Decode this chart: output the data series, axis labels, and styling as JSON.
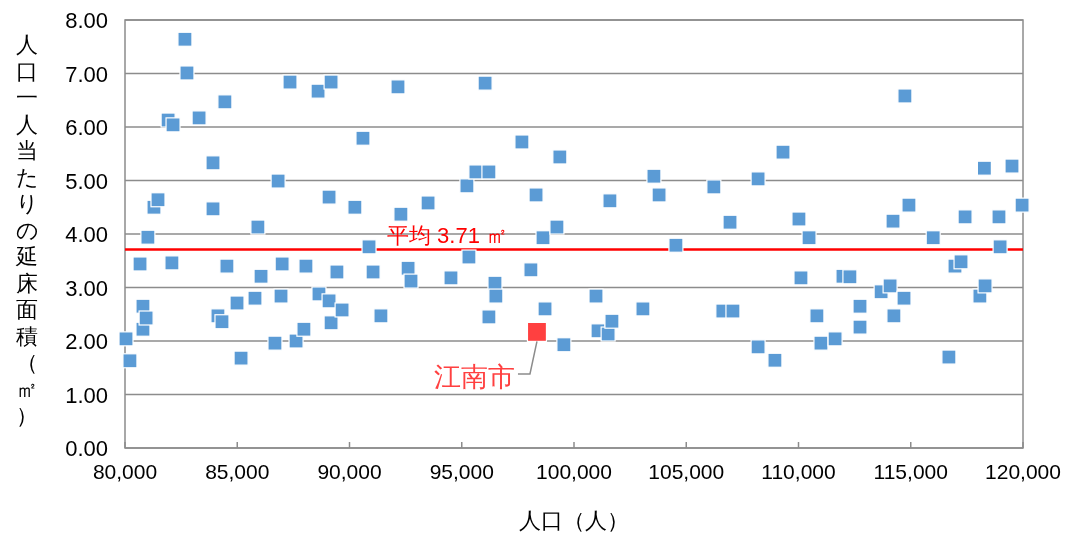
{
  "chart_data": {
    "type": "scatter",
    "xlabel": "人口（人）",
    "ylabel": "人口一人当たりの延床面積（㎡）",
    "xlim": [
      80000,
      120000
    ],
    "xticks": [
      {
        "value": 80000,
        "label": "80,000"
      },
      {
        "value": 85000,
        "label": "85,000"
      },
      {
        "value": 90000,
        "label": "90,000"
      },
      {
        "value": 95000,
        "label": "95,000"
      },
      {
        "value": 100000,
        "label": "100,000"
      },
      {
        "value": 105000,
        "label": "105,000"
      },
      {
        "value": 110000,
        "label": "110,000"
      },
      {
        "value": 115000,
        "label": "115,000"
      },
      {
        "value": 120000,
        "label": "120,000"
      }
    ],
    "ylim": [
      0,
      8
    ],
    "yticks": [
      {
        "value": 0,
        "label": "0.00"
      },
      {
        "value": 1,
        "label": "1.00"
      },
      {
        "value": 2,
        "label": "2.00"
      },
      {
        "value": 3,
        "label": "3.00"
      },
      {
        "value": 4,
        "label": "4.00"
      },
      {
        "value": 5,
        "label": "5.00"
      },
      {
        "value": 6,
        "label": "6.00"
      },
      {
        "value": 7,
        "label": "7.00"
      },
      {
        "value": 8,
        "label": "8.00"
      }
    ],
    "grid": "y",
    "marker": "square",
    "ref_lines": [
      {
        "axis": "y",
        "value": 3.71,
        "label": "平均 3.71 ㎡",
        "color": "#ff0000",
        "line_style": "solid"
      }
    ],
    "series": [
      {
        "color": "#5b9bd5",
        "x": [
          80045,
          80220,
          80670,
          80800,
          80800,
          80940,
          81020,
          81290,
          81470,
          81920,
          82140,
          82090,
          82670,
          82760,
          83300,
          83920,
          83920,
          84140,
          84320,
          84450,
          84540,
          84990,
          85170,
          85790,
          85920,
          86060,
          86680,
          86820,
          86950,
          87000,
          87350,
          87620,
          87970,
          88060,
          88600,
          88640,
          89090,
          89180,
          89090,
          89180,
          89440,
          89670,
          90240,
          90600,
          90870,
          91050,
          91400,
          92160,
          92290,
          92610,
          92740,
          93500,
          94520,
          95230,
          95320,
          95630,
          96040,
          96210,
          96210,
          96480,
          96520,
          97680,
          98080,
          98310,
          98620,
          98710,
          99240,
          99370,
          99550,
          100980,
          101070,
          101520,
          101600,
          101690,
          103070,
          103560,
          103790,
          104540,
          106230,
          106630,
          107080,
          106950,
          108200,
          108200,
          108950,
          109310,
          110020,
          110110,
          110470,
          110820,
          111000,
          111630,
          111980,
          112290,
          112740,
          112740,
          113680,
          114080,
          114210,
          114250,
          114740,
          114700,
          114920,
          116000,
          116700,
          116970,
          117240,
          117420,
          118080,
          118280,
          118310,
          118930,
          118980,
          119510,
          119960
        ],
        "values": [
          2.04,
          1.63,
          3.44,
          2.65,
          2.22,
          2.43,
          3.94,
          4.5,
          4.64,
          6.13,
          6.04,
          3.46,
          7.64,
          7.01,
          6.17,
          5.33,
          4.47,
          2.47,
          2.36,
          6.47,
          3.4,
          2.71,
          1.68,
          2.8,
          4.13,
          3.21,
          1.96,
          4.99,
          2.84,
          3.44,
          6.84,
          2.0,
          2.22,
          3.4,
          6.67,
          2.88,
          4.69,
          6.84,
          2.75,
          2.34,
          3.29,
          2.58,
          4.5,
          5.79,
          3.76,
          3.29,
          2.47,
          6.75,
          4.37,
          3.36,
          3.12,
          4.58,
          3.18,
          4.9,
          3.57,
          5.16,
          6.82,
          5.16,
          2.45,
          3.08,
          2.84,
          5.72,
          3.33,
          4.73,
          3.93,
          2.6,
          4.13,
          5.44,
          1.93,
          2.84,
          2.19,
          2.13,
          4.62,
          2.37,
          2.6,
          5.08,
          4.73,
          3.79,
          4.88,
          2.56,
          2.56,
          4.22,
          5.03,
          1.89,
          1.64,
          5.53,
          4.28,
          3.18,
          3.93,
          2.47,
          1.96,
          2.04,
          3.21,
          3.2,
          2.65,
          2.26,
          2.92,
          3.03,
          4.24,
          2.47,
          6.58,
          2.8,
          4.54,
          3.93,
          1.7,
          3.4,
          3.48,
          4.32,
          2.84,
          5.23,
          3.03,
          4.32,
          3.76,
          5.27,
          4.54
        ]
      },
      {
        "name": "江南市",
        "color": "#ff4040",
        "x": [
          98350
        ],
        "values": [
          2.17
        ]
      }
    ]
  }
}
